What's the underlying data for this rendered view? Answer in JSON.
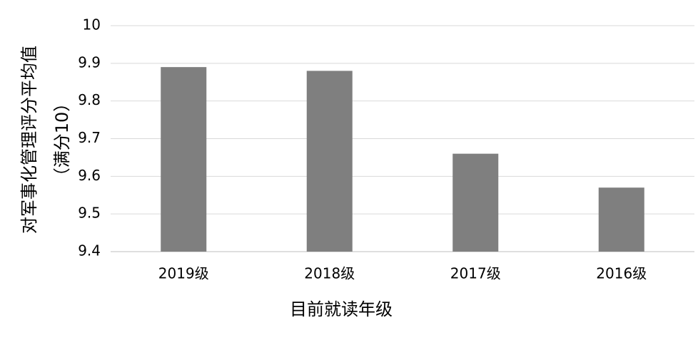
{
  "chart_data": {
    "type": "bar",
    "ylabel": [
      "对军事化管理评分平均值",
      "（满分10）"
    ],
    "xlabel": "目前就读年级",
    "categories": [
      "2019级",
      "2018级",
      "2017级",
      "2016级"
    ],
    "values": [
      9.89,
      9.88,
      9.66,
      9.57
    ],
    "color": "#7f7f7f",
    "ylim": [
      9.4,
      10
    ],
    "yticks": [
      9.4,
      9.5,
      9.6,
      9.7,
      9.8,
      9.9,
      10
    ],
    "grid": true
  }
}
